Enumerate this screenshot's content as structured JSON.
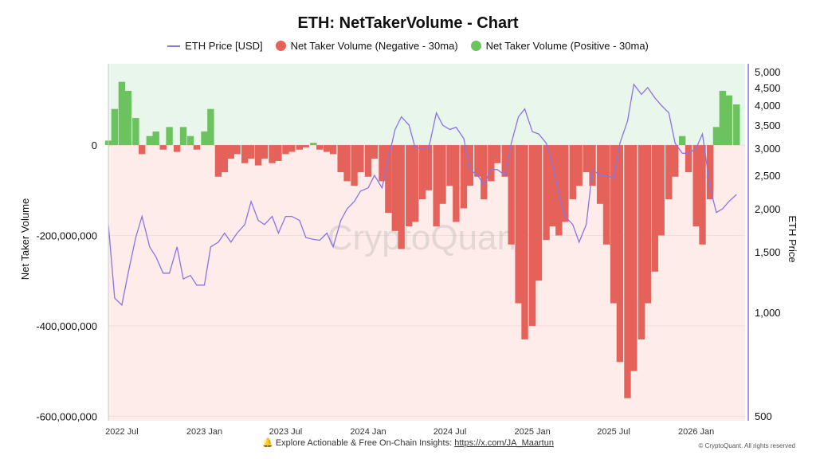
{
  "title": "ETH: NetTakerVolume - Chart",
  "footer": {
    "icon": "bell-icon",
    "text": "Explore Actionable & Free On-Chain Insights: ",
    "link": "https://x.com/JA_Maartun",
    "copyright": "© CryptoQuant. All rights reserved"
  },
  "watermark": "CryptoQuant",
  "chart_data": {
    "type": "bar",
    "title": "ETH: NetTakerVolume - Chart",
    "legend_placement": "top",
    "legend": [
      "ETH Price [USD]",
      "Net Taker Volume (Negative - 30ma)",
      "Net Taker Volume (Positive - 30ma)"
    ],
    "colors": {
      "price": "#8a74e0",
      "negative": "#e4625a",
      "positive": "#6cc25e",
      "positive_bg": "#e9f6ec",
      "negative_bg": "#fdecea"
    },
    "ylabel_left": "Net Taker Volume",
    "ylabel_right": "ETH Price",
    "y_left_ticks": [
      0,
      -200000000,
      -400000000,
      -600000000
    ],
    "y_left_tick_labels": [
      "0",
      "-200,000,000",
      "-400,000,000",
      "-600,000,000"
    ],
    "y_left_range": [
      -610000000,
      180000000
    ],
    "y_right_scale": "log",
    "y_right_ticks": [
      500,
      1000,
      1500,
      2000,
      2500,
      3000,
      3500,
      4000,
      4500,
      5000
    ],
    "y_right_tick_labels": [
      "500",
      "1,000",
      "1,500",
      "2,000",
      "2,500",
      "3,000",
      "3,500",
      "4,000",
      "4,500",
      "5,000"
    ],
    "x_ticks": [
      "2022-07-01",
      "2023-01-01",
      "2023-07-01",
      "2024-01-01",
      "2024-07-01",
      "2025-01-01",
      "2025-07-01",
      "2026-01-01"
    ],
    "x_tick_labels": [
      "2022 Jul",
      "2023 Jan",
      "2023 Jul",
      "2024 Jan",
      "2024 Jul",
      "2025 Jan",
      "2025 Jul",
      "2026 Jan"
    ],
    "x_range": [
      "2022-06-01",
      "2026-04-20"
    ],
    "dates": [
      "2022-06-01",
      "2022-06-15",
      "2022-07-01",
      "2022-07-15",
      "2022-08-01",
      "2022-08-15",
      "2022-09-01",
      "2022-09-15",
      "2022-10-01",
      "2022-10-15",
      "2022-11-01",
      "2022-11-15",
      "2022-12-01",
      "2022-12-15",
      "2023-01-01",
      "2023-01-15",
      "2023-02-01",
      "2023-02-15",
      "2023-03-01",
      "2023-03-15",
      "2023-04-01",
      "2023-04-15",
      "2023-05-01",
      "2023-05-15",
      "2023-06-01",
      "2023-06-15",
      "2023-07-01",
      "2023-07-15",
      "2023-08-01",
      "2023-08-15",
      "2023-09-01",
      "2023-09-15",
      "2023-10-01",
      "2023-10-15",
      "2023-11-01",
      "2023-11-15",
      "2023-12-01",
      "2023-12-15",
      "2024-01-01",
      "2024-01-15",
      "2024-02-01",
      "2024-02-15",
      "2024-03-01",
      "2024-03-15",
      "2024-04-01",
      "2024-04-15",
      "2024-05-01",
      "2024-05-15",
      "2024-06-01",
      "2024-06-15",
      "2024-07-01",
      "2024-07-15",
      "2024-08-01",
      "2024-08-15",
      "2024-09-01",
      "2024-09-15",
      "2024-10-01",
      "2024-10-15",
      "2024-11-01",
      "2024-11-15",
      "2024-12-01",
      "2024-12-15",
      "2025-01-01",
      "2025-01-15",
      "2025-02-01",
      "2025-02-15",
      "2025-03-01",
      "2025-03-15",
      "2025-04-01",
      "2025-04-15",
      "2025-05-01",
      "2025-05-15",
      "2025-06-01",
      "2025-06-15",
      "2025-07-01",
      "2025-07-15",
      "2025-08-01",
      "2025-08-15",
      "2025-09-01",
      "2025-09-15",
      "2025-10-01",
      "2025-10-15",
      "2025-11-01",
      "2025-11-15",
      "2025-12-01",
      "2025-12-15",
      "2026-01-01",
      "2026-01-15",
      "2026-02-01",
      "2026-02-15",
      "2026-03-01",
      "2026-03-15",
      "2026-04-01"
    ],
    "series": [
      {
        "name": "ETH Price [USD]",
        "axis": "right",
        "type": "line",
        "values": [
          1800,
          1100,
          1050,
          1300,
          1650,
          1900,
          1550,
          1450,
          1300,
          1300,
          1550,
          1250,
          1280,
          1200,
          1200,
          1550,
          1600,
          1700,
          1600,
          1700,
          1800,
          2100,
          1850,
          1800,
          1900,
          1700,
          1900,
          1900,
          1850,
          1650,
          1630,
          1620,
          1700,
          1550,
          1850,
          2000,
          2100,
          2250,
          2300,
          2500,
          2300,
          2800,
          3400,
          3700,
          3500,
          3000,
          3000,
          3000,
          3800,
          3500,
          3400,
          3450,
          3200,
          2600,
          2500,
          2350,
          2600,
          2600,
          2500,
          3100,
          3700,
          3900,
          3350,
          3300,
          3100,
          2700,
          2200,
          1900,
          1800,
          1600,
          1800,
          2600,
          2500,
          2500,
          2450,
          3100,
          3600,
          4600,
          4300,
          4500,
          4200,
          4000,
          3800,
          3100,
          2900,
          2900,
          3000,
          3300,
          2300,
          1950,
          2000,
          2100,
          2200
        ]
      },
      {
        "name": "Net Taker Volume (30ma)",
        "axis": "left",
        "type": "bar",
        "values": [
          10000000,
          80000000,
          140000000,
          120000000,
          60000000,
          -20000000,
          20000000,
          30000000,
          -10000000,
          40000000,
          -15000000,
          40000000,
          20000000,
          -10000000,
          30000000,
          80000000,
          -70000000,
          -60000000,
          -30000000,
          -20000000,
          -40000000,
          -30000000,
          -45000000,
          -30000000,
          -40000000,
          -35000000,
          -20000000,
          -15000000,
          -10000000,
          -5000000,
          5000000,
          -10000000,
          -15000000,
          -20000000,
          -60000000,
          -80000000,
          -90000000,
          -60000000,
          -70000000,
          -30000000,
          -80000000,
          -150000000,
          -190000000,
          -230000000,
          -180000000,
          -170000000,
          -120000000,
          -100000000,
          -180000000,
          -130000000,
          -90000000,
          -170000000,
          -140000000,
          -90000000,
          -70000000,
          -120000000,
          -80000000,
          -40000000,
          -70000000,
          -220000000,
          -350000000,
          -430000000,
          -400000000,
          -300000000,
          -210000000,
          -180000000,
          -200000000,
          -170000000,
          -120000000,
          -90000000,
          -60000000,
          -90000000,
          -130000000,
          -220000000,
          -350000000,
          -480000000,
          -560000000,
          -500000000,
          -430000000,
          -350000000,
          -280000000,
          -200000000,
          -120000000,
          -70000000,
          20000000,
          -60000000,
          -180000000,
          -220000000,
          -120000000,
          40000000,
          120000000,
          110000000,
          90000000
        ]
      }
    ]
  }
}
